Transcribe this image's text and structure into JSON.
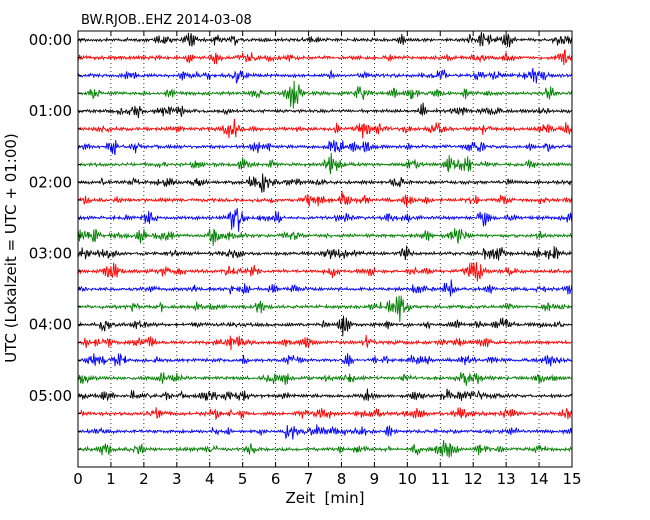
{
  "chart_data": {
    "type": "line",
    "title": "BW.RJOB..EHZ 2014-03-08",
    "xlabel": "Zeit  [min]",
    "ylabel": "UTC (Lokalzeit = UTC + 01:00)",
    "xlim": [
      0,
      15
    ],
    "x_ticks": [
      "0",
      "1",
      "2",
      "3",
      "4",
      "5",
      "6",
      "7",
      "8",
      "9",
      "10",
      "11",
      "12",
      "13",
      "14",
      "15"
    ],
    "y_tick_labels": [
      "00:00",
      "01:00",
      "02:00",
      "03:00",
      "04:00",
      "05:00"
    ],
    "trace_interval_minutes": 15,
    "trace_count": 24,
    "trace_colors": [
      "#000000",
      "#ff0000",
      "#0000ff",
      "#007f00"
    ],
    "vertical_grid": "dotted",
    "horizontal_grid": false
  }
}
